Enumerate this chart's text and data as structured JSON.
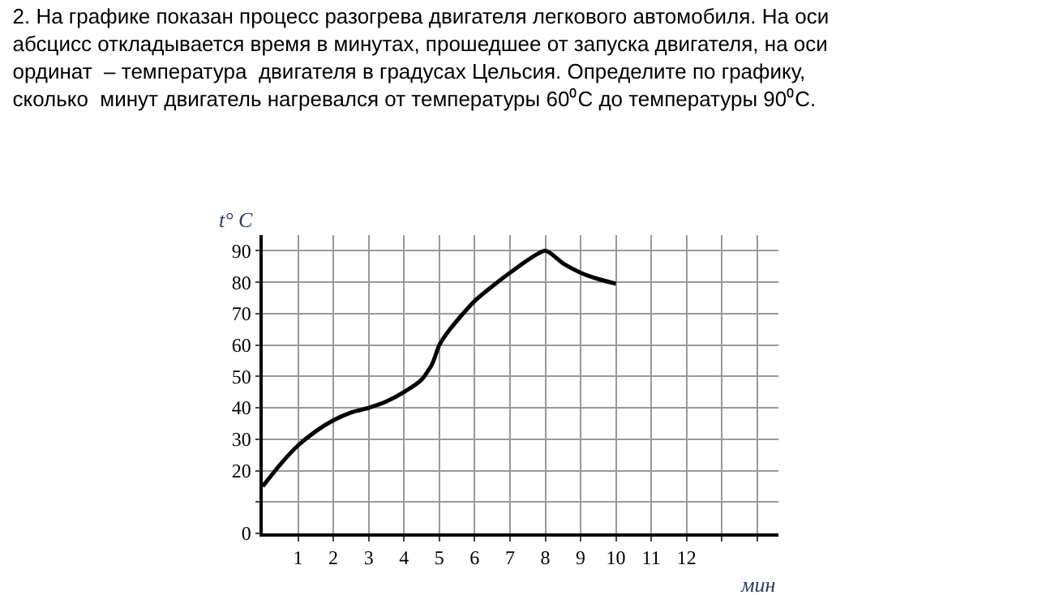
{
  "chart_data": {
    "type": "line",
    "title": "2. На графике показан процесс разогрева двигателя легкового автомобиля. На оси\nабсцисс откладывается время в минутах, прошедшее от запуска двигателя, на оси\nординат  – температура  двигателя в градусах Цельсия. Определите по графику,\nсколько  минут двигатель нагревался от температуры 60⁰С до температуры 90⁰С.",
    "xlabel": "мин",
    "ylabel": "t° C",
    "x": [
      0,
      0.5,
      1,
      1.5,
      2,
      2.5,
      3,
      3.5,
      4,
      4.5,
      4.8,
      5,
      5.3,
      6,
      7,
      8,
      8.5,
      9,
      9.5,
      10
    ],
    "series": [
      {
        "color": "#000000",
        "values": [
          15,
          22,
          28,
          32.5,
          36,
          38.5,
          40,
          42,
          45,
          49,
          54,
          60,
          65,
          74,
          83,
          90,
          86,
          83,
          81,
          79.5
        ]
      }
    ],
    "xlim": [
      0,
      14.6
    ],
    "ylim": [
      0,
      95
    ],
    "xticks": [
      1,
      2,
      3,
      4,
      5,
      6,
      7,
      8,
      9,
      10,
      11,
      12,
      {
        "value": 13,
        "label": null
      },
      {
        "value": 14,
        "label": null
      }
    ],
    "yticks": [
      0,
      {
        "value": 10,
        "label": null
      },
      20,
      30,
      40,
      50,
      60,
      70,
      80,
      90
    ],
    "grid": true,
    "marker": "none",
    "line_style": "solid",
    "legend": false
  }
}
